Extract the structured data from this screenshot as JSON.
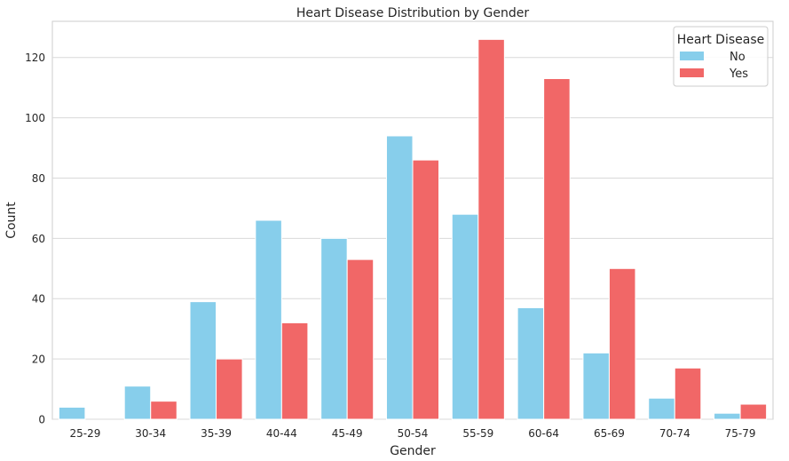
{
  "chart_data": {
    "type": "bar",
    "title": "Heart Disease Distribution by Gender",
    "xlabel": "Gender",
    "ylabel": "Count",
    "categories": [
      "25-29",
      "30-34",
      "35-39",
      "40-44",
      "45-49",
      "50-54",
      "55-59",
      "60-64",
      "65-69",
      "70-74",
      "75-79"
    ],
    "series": [
      {
        "name": "No",
        "color": "#87CEEB",
        "values": [
          4,
          11,
          39,
          66,
          60,
          94,
          68,
          37,
          22,
          7,
          2
        ]
      },
      {
        "name": "Yes",
        "color": "#F16767",
        "values": [
          0,
          6,
          20,
          32,
          53,
          86,
          126,
          113,
          50,
          17,
          5
        ]
      }
    ],
    "ylim": [
      0,
      132
    ],
    "yticks": [
      0,
      20,
      40,
      60,
      80,
      100,
      120
    ],
    "legend": {
      "title": "Heart Disease",
      "position": "top-right"
    },
    "grid": "horizontal"
  }
}
